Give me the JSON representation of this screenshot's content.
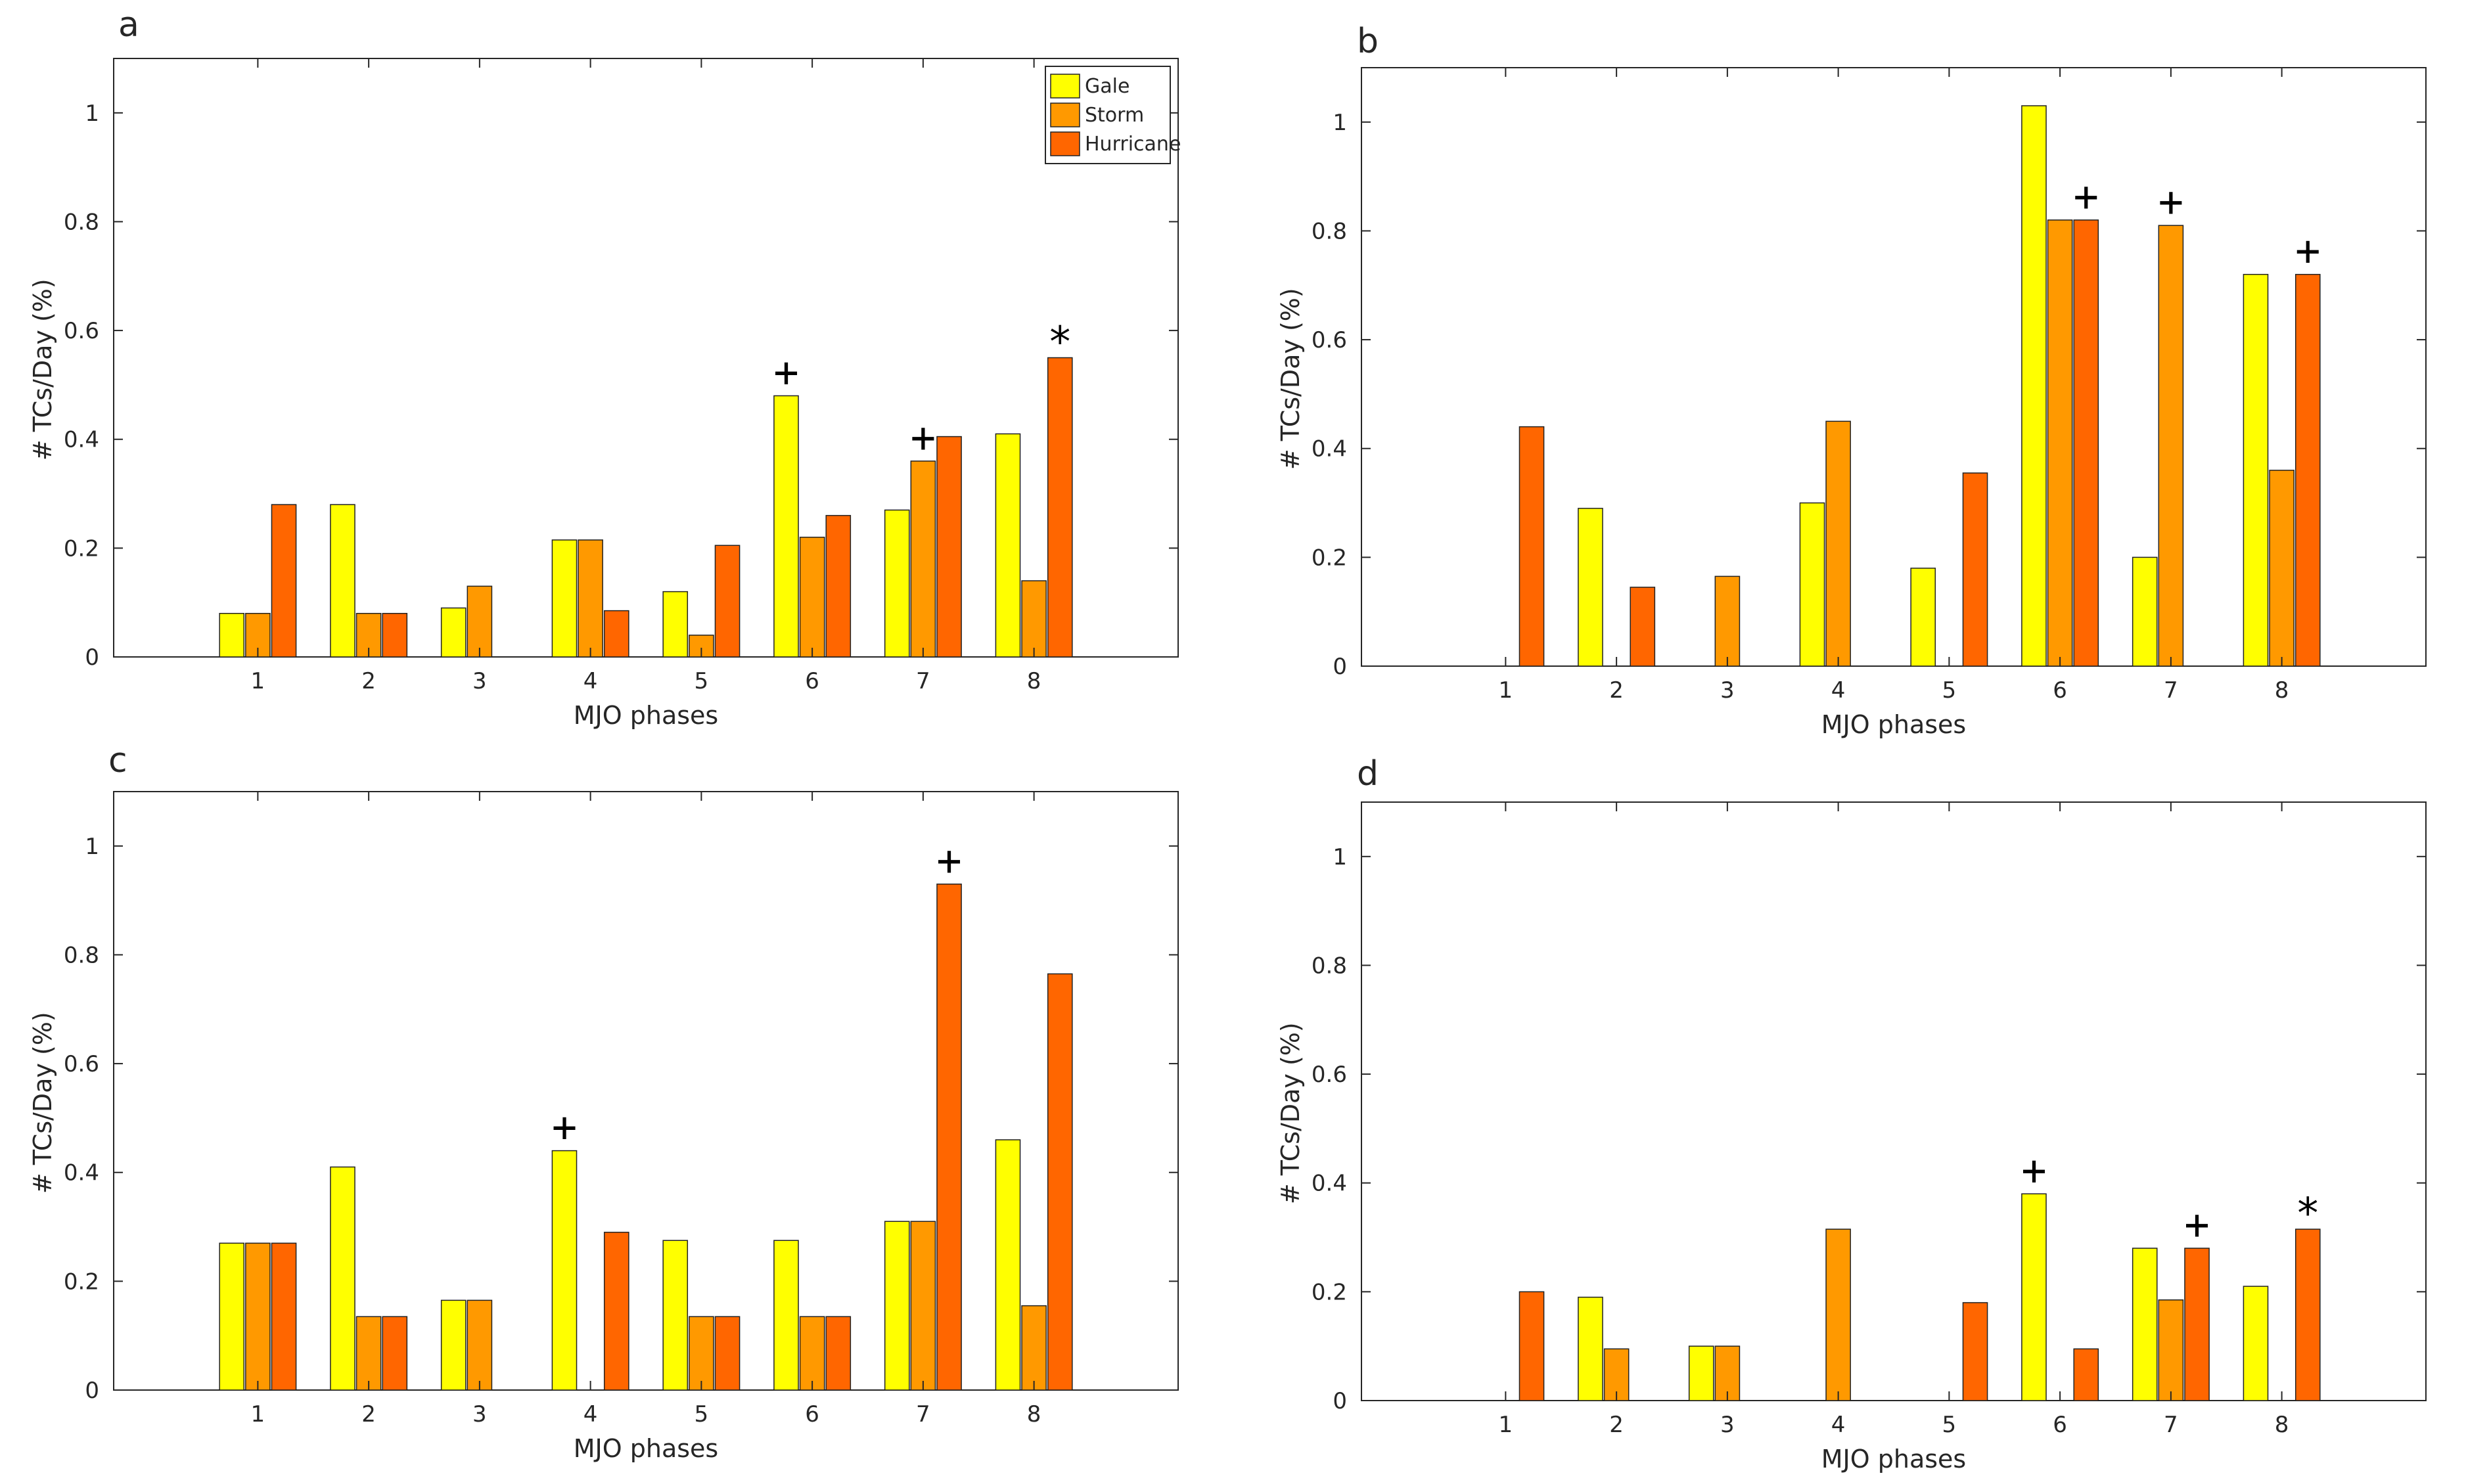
{
  "colors": {
    "gale": "#ffff00",
    "storm": "#ff9900",
    "hurricane": "#ff6600",
    "axis": "#262626"
  },
  "chart_data": [
    {
      "panel": "a",
      "type": "bar",
      "categories": [
        "1",
        "2",
        "3",
        "4",
        "5",
        "6",
        "7",
        "8"
      ],
      "xlabel": "MJO phases",
      "ylabel": "# TCs/Day (%)",
      "ylim": [
        0,
        1.1
      ],
      "yticks": [
        "0",
        "0.2",
        "0.4",
        "0.6",
        "0.8",
        "1"
      ],
      "legend": {
        "placement": "top-right",
        "entries": [
          "Gale",
          "Storm",
          "Hurricane"
        ]
      },
      "series": [
        {
          "name": "Gale",
          "values": [
            0.08,
            0.28,
            0.09,
            0.215,
            0.12,
            0.48,
            0.27,
            0.41
          ]
        },
        {
          "name": "Storm",
          "values": [
            0.08,
            0.08,
            0.13,
            0.215,
            0.04,
            0.22,
            0.36,
            0.14
          ]
        },
        {
          "name": "Hurricane",
          "values": [
            0.28,
            0.08,
            0,
            0.085,
            0.205,
            0.26,
            0.405,
            0.55
          ]
        }
      ],
      "annotations": [
        {
          "category": "6",
          "series": "Gale",
          "text": "+"
        },
        {
          "category": "7",
          "series": "Storm",
          "text": "+"
        },
        {
          "category": "8",
          "series": "Hurricane",
          "text": "*"
        }
      ]
    },
    {
      "panel": "b",
      "type": "bar",
      "categories": [
        "1",
        "2",
        "3",
        "4",
        "5",
        "6",
        "7",
        "8"
      ],
      "xlabel": "MJO phases",
      "ylabel": "# TCs/Day (%)",
      "ylim": [
        0,
        1.1
      ],
      "yticks": [
        "0",
        "0.2",
        "0.4",
        "0.6",
        "0.8",
        "1"
      ],
      "series": [
        {
          "name": "Gale",
          "values": [
            0,
            0.29,
            0,
            0.3,
            0.18,
            1.03,
            0.2,
            0.72
          ]
        },
        {
          "name": "Storm",
          "values": [
            0,
            0,
            0.165,
            0.45,
            0,
            0.82,
            0.81,
            0.36
          ]
        },
        {
          "name": "Hurricane",
          "values": [
            0.44,
            0.145,
            0,
            0,
            0.355,
            0.82,
            0,
            0.72
          ]
        }
      ],
      "annotations": [
        {
          "category": "6",
          "series": "Hurricane",
          "text": "+"
        },
        {
          "category": "7",
          "series": "Storm",
          "text": "+"
        },
        {
          "category": "8",
          "series": "Hurricane",
          "text": "+"
        }
      ]
    },
    {
      "panel": "c",
      "type": "bar",
      "categories": [
        "1",
        "2",
        "3",
        "4",
        "5",
        "6",
        "7",
        "8"
      ],
      "xlabel": "MJO phases",
      "ylabel": "# TCs/Day (%)",
      "ylim": [
        0,
        1.1
      ],
      "yticks": [
        "0",
        "0.2",
        "0.4",
        "0.6",
        "0.8",
        "1"
      ],
      "series": [
        {
          "name": "Gale",
          "values": [
            0.27,
            0.41,
            0.165,
            0.44,
            0.275,
            0.275,
            0.31,
            0.46
          ]
        },
        {
          "name": "Storm",
          "values": [
            0.27,
            0.135,
            0.165,
            0,
            0.135,
            0.135,
            0.31,
            0.155
          ]
        },
        {
          "name": "Hurricane",
          "values": [
            0.27,
            0.135,
            0,
            0.29,
            0.135,
            0.135,
            0.93,
            0.765
          ]
        }
      ],
      "annotations": [
        {
          "category": "4",
          "series": "Gale",
          "text": "+"
        },
        {
          "category": "7",
          "series": "Hurricane",
          "text": "+"
        }
      ]
    },
    {
      "panel": "d",
      "type": "bar",
      "categories": [
        "1",
        "2",
        "3",
        "4",
        "5",
        "6",
        "7",
        "8"
      ],
      "xlabel": "MJO phases",
      "ylabel": "# TCs/Day (%)",
      "ylim": [
        0,
        1.1
      ],
      "yticks": [
        "0",
        "0.2",
        "0.4",
        "0.6",
        "0.8",
        "1"
      ],
      "series": [
        {
          "name": "Gale",
          "values": [
            0,
            0.19,
            0.1,
            0,
            0,
            0.38,
            0.28,
            0.21
          ]
        },
        {
          "name": "Storm",
          "values": [
            0,
            0.095,
            0.1,
            0.315,
            0,
            0,
            0.185,
            0
          ]
        },
        {
          "name": "Hurricane",
          "values": [
            0.2,
            0,
            0,
            0,
            0.18,
            0.095,
            0.28,
            0.315
          ]
        }
      ],
      "annotations": [
        {
          "category": "6",
          "series": "Gale",
          "text": "+"
        },
        {
          "category": "7",
          "series": "Hurricane",
          "text": "+"
        },
        {
          "category": "8",
          "series": "Hurricane",
          "text": "*"
        }
      ]
    }
  ]
}
